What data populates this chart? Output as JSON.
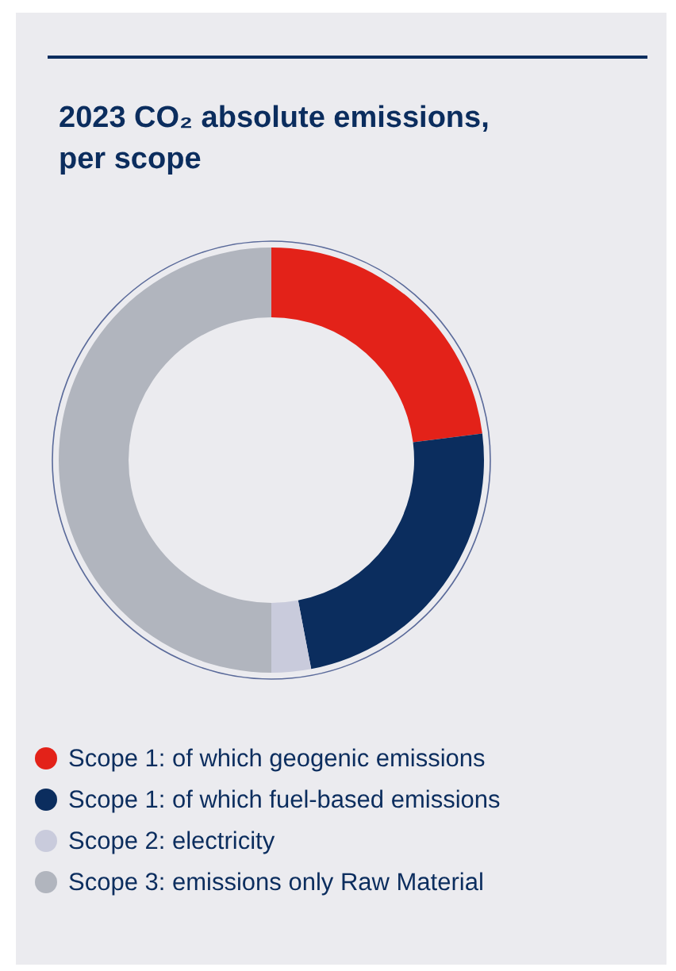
{
  "chart_data": {
    "type": "donut",
    "title": "2023 CO₂ absolute emissions, per scope",
    "categories": [
      "Scope 1: of which geogenic emissions",
      "Scope 1: of which fuel-based emissions",
      "Scope 2: electricity",
      "Scope 3: emissions only Raw Material"
    ],
    "values": [
      23,
      24,
      3,
      50
    ],
    "colors": [
      "#e32219",
      "#0b2d5e",
      "#c9cbdc",
      "#b1b5be"
    ],
    "legend": "bottom"
  }
}
